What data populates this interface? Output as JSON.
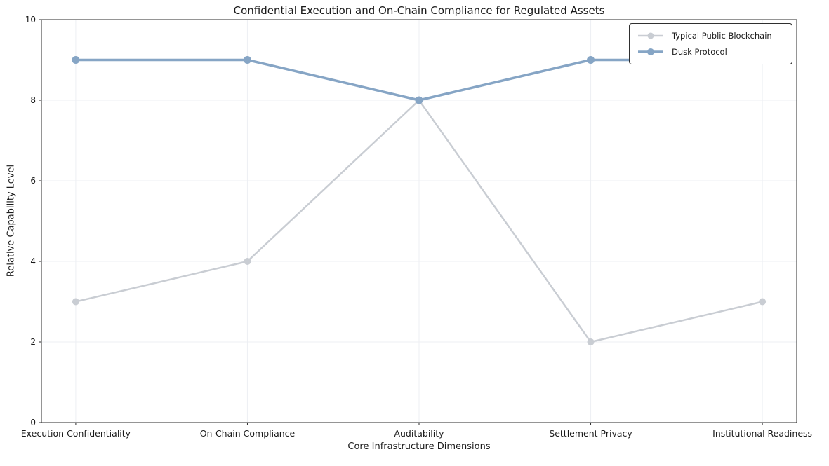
{
  "figure": {
    "background_color": "#ffffff",
    "text_color": "#1a1a1a",
    "axis_color": "#2b2b2b",
    "grid_color": "#edeff3"
  },
  "chart_data": {
    "type": "line",
    "title": "Confidential Execution and On-Chain Compliance for Regulated Assets",
    "xlabel": "Core Infrastructure Dimensions",
    "ylabel": "Relative Capability Level",
    "categories": [
      "Execution Confidentiality",
      "On-Chain Compliance",
      "Auditability",
      "Settlement Privacy",
      "Institutional Readiness"
    ],
    "series": [
      {
        "name": "Typical Public Blockchain",
        "values": [
          3,
          4,
          8,
          2,
          3
        ],
        "color": "#c9cdd3"
      },
      {
        "name": "Dusk Protocol",
        "values": [
          9,
          9,
          8,
          9,
          9
        ],
        "color": "#86a5c5"
      }
    ],
    "ylim": [
      0,
      10
    ],
    "yticks": [
      0,
      2,
      4,
      6,
      8,
      10
    ],
    "grid": true,
    "legend_position": "upper right"
  }
}
